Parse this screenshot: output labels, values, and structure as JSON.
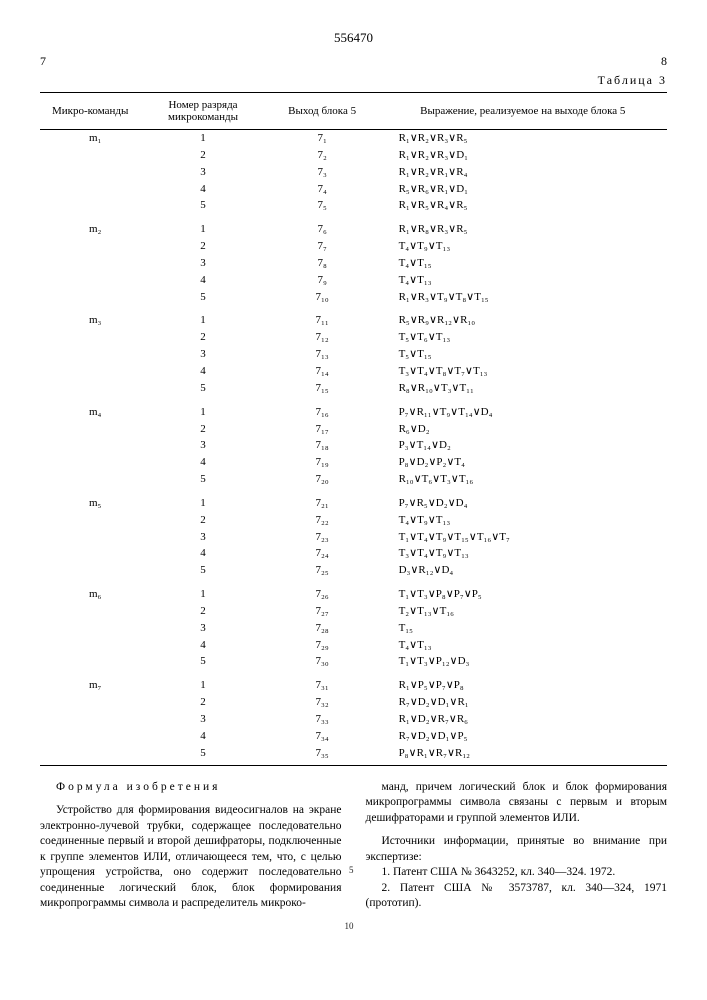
{
  "patent_number": "556470",
  "page_left": "7",
  "page_right": "8",
  "table_label": "Таблица 3",
  "headers": {
    "c1": "Микро-команды",
    "c2": "Номер разряда микрокоманды",
    "c3": "Выход блока 5",
    "c4": "Выражение, реализуемое на выходе блока 5"
  },
  "groups": [
    {
      "mc": "m₁",
      "rows": [
        {
          "n": "1",
          "out": "7₁",
          "expr": "R₁∨R₂∨R₃∨R₅"
        },
        {
          "n": "2",
          "out": "7₂",
          "expr": "R₁∨R₂∨R₃∨D₁"
        },
        {
          "n": "3",
          "out": "7₃",
          "expr": "R₁∨R₂∨R₁∨R₄"
        },
        {
          "n": "4",
          "out": "7₄",
          "expr": "R₅∨R₆∨R₁∨D₁"
        },
        {
          "n": "5",
          "out": "7₅",
          "expr": "R₁∨R₅∨R₄∨R₅"
        }
      ]
    },
    {
      "mc": "m₂",
      "rows": [
        {
          "n": "1",
          "out": "7₆",
          "expr": "R₁∨R₈∨R₃∨R₅"
        },
        {
          "n": "2",
          "out": "7₇",
          "expr": "T₄∨T₉∨T₁₃"
        },
        {
          "n": "3",
          "out": "7₈",
          "expr": "T₄∨T₁₅"
        },
        {
          "n": "4",
          "out": "7₉",
          "expr": "T₄∨T₁₃"
        },
        {
          "n": "5",
          "out": "7₁₀",
          "expr": "R₁∨R₃∨T₉∨T₈∨T₁₅"
        }
      ]
    },
    {
      "mc": "m₃",
      "rows": [
        {
          "n": "1",
          "out": "7₁₁",
          "expr": "R₅∨R₉∨R₁₂∨R₁₀"
        },
        {
          "n": "2",
          "out": "7₁₂",
          "expr": "T₅∨T₆∨T₁₃"
        },
        {
          "n": "3",
          "out": "7₁₃",
          "expr": "T₅∨T₁₅"
        },
        {
          "n": "4",
          "out": "7₁₄",
          "expr": "T₃∨T₄∨T₈∨T₇∨T₁₃"
        },
        {
          "n": "5",
          "out": "7₁₅",
          "expr": "R₈∨R₁₀∨T₃∨T₁₁"
        }
      ]
    },
    {
      "mc": "m₄",
      "rows": [
        {
          "n": "1",
          "out": "7₁₆",
          "expr": "P₇∨R₁₁∨T₉∨T₁₄∨D₄"
        },
        {
          "n": "2",
          "out": "7₁₇",
          "expr": "R₆∨D₂"
        },
        {
          "n": "3",
          "out": "7₁₈",
          "expr": "P₃∨T₁₄∨D₂"
        },
        {
          "n": "4",
          "out": "7₁₉",
          "expr": "P₈∨D₂∨P₂∨T₄"
        },
        {
          "n": "5",
          "out": "7₂₀",
          "expr": "R₁₀∨T₆∨T₃∨T₁₆"
        }
      ]
    },
    {
      "mc": "m₅",
      "rows": [
        {
          "n": "1",
          "out": "7₂₁",
          "expr": "P₇∨R₅∨D₂∨D₄"
        },
        {
          "n": "2",
          "out": "7₂₂",
          "expr": "T₄∨T₉∨T₁₃"
        },
        {
          "n": "3",
          "out": "7₂₃",
          "expr": "T₁∨T₄∨T₉∨T₁₅∨T₁₆∨T₇"
        },
        {
          "n": "4",
          "out": "7₂₄",
          "expr": "T₃∨T₄∨T₉∨T₁₃"
        },
        {
          "n": "5",
          "out": "7₂₅",
          "expr": "D₃∨R₁₂∨D₄"
        }
      ]
    },
    {
      "mc": "m₆",
      "rows": [
        {
          "n": "1",
          "out": "7₂₆",
          "expr": "T₁∨T₃∨P₈∨P₇∨P₅"
        },
        {
          "n": "2",
          "out": "7₂₇",
          "expr": "T₂∨T₁₃∨T₁₆"
        },
        {
          "n": "3",
          "out": "7₂₈",
          "expr": "T₁₅"
        },
        {
          "n": "4",
          "out": "7₂₉",
          "expr": "T₄∨T₁₃"
        },
        {
          "n": "5",
          "out": "7₃₀",
          "expr": "T₁∨T₃∨P₁₂∨D₃"
        }
      ]
    },
    {
      "mc": "m₇",
      "rows": [
        {
          "n": "1",
          "out": "7₃₁",
          "expr": "R₁∨P₅∨P₇∨P₈"
        },
        {
          "n": "2",
          "out": "7₃₂",
          "expr": "R₇∨D₂∨D₁∨R₁"
        },
        {
          "n": "3",
          "out": "7₃₃",
          "expr": "R₁∨D₂∨R₇∨R₆"
        },
        {
          "n": "4",
          "out": "7₃₄",
          "expr": "R₇∨D₂∨D₁∨P₅"
        },
        {
          "n": "5",
          "out": "7₃₅",
          "expr": "P₈∨R₁∨R₇∨R₁₂"
        }
      ]
    }
  ],
  "formula_title": "Формула изобретения",
  "left_text": "Устройство для формирования видеосигналов на экране электронно-лучевой трубки, содержащее последовательно соединенные первый и второй дешифраторы, подключенные к группе элементов ИЛИ, отличающееся тем, что, с целью упрощения устройства, оно содержит последовательно соединенные логический блок, блок формирования микропрограммы символа и распределитель микроко-",
  "right_text_1": "манд, причем логический блок и блок формирования микропрограммы символа связаны с первым и вторым дешифраторами и группой элементов ИЛИ.",
  "right_heading": "Источники информации, принятые во внимание при экспертизе:",
  "right_src_1": "1. Патент США № 3643252, кл. 340—324. 1972.",
  "right_src_2": "2. Патент США № 3573787, кл. 340—324, 1971 (прототип).",
  "line_numbers": {
    "l5": "5",
    "l10": "10"
  }
}
